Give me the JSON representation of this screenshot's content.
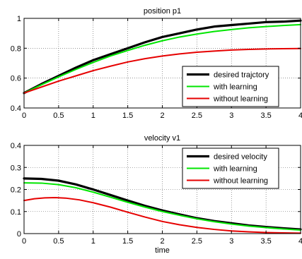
{
  "chart_data": [
    {
      "type": "line",
      "title": "position p1",
      "xlabel": "",
      "ylabel": "",
      "xlim": [
        0,
        4
      ],
      "ylim": [
        0.4,
        1
      ],
      "xticks": [
        0,
        0.5,
        1,
        1.5,
        2,
        2.5,
        3,
        3.5,
        4
      ],
      "xtick_labels": [
        "0",
        "0.5",
        "1",
        "1.5",
        "2",
        "2.5",
        "3",
        "3.5",
        "4"
      ],
      "yticks": [
        0.4,
        0.6,
        0.8,
        1
      ],
      "ytick_labels": [
        "0.4",
        "0.6",
        "0.8",
        "1"
      ],
      "grid": true,
      "legend_position": "bottom-right",
      "series": [
        {
          "name": "desired trajctory",
          "color": "#000000",
          "x": [
            0,
            0.25,
            0.5,
            0.75,
            1,
            1.25,
            1.5,
            1.75,
            2,
            2.25,
            2.5,
            2.75,
            3,
            3.25,
            3.5,
            3.75,
            4
          ],
          "y": [
            0.5,
            0.56,
            0.615,
            0.67,
            0.72,
            0.76,
            0.8,
            0.84,
            0.875,
            0.9,
            0.925,
            0.945,
            0.955,
            0.965,
            0.975,
            0.978,
            0.985
          ]
        },
        {
          "name": "with learning",
          "color": "#00e600",
          "x": [
            0,
            0.25,
            0.5,
            0.75,
            1,
            1.25,
            1.5,
            1.75,
            2,
            2.25,
            2.5,
            2.75,
            3,
            3.25,
            3.5,
            3.75,
            4
          ],
          "y": [
            0.5,
            0.555,
            0.608,
            0.658,
            0.705,
            0.748,
            0.785,
            0.82,
            0.85,
            0.875,
            0.895,
            0.912,
            0.925,
            0.937,
            0.945,
            0.952,
            0.958
          ]
        },
        {
          "name": "without learning",
          "color": "#e60000",
          "x": [
            0,
            0.25,
            0.5,
            0.75,
            1,
            1.25,
            1.5,
            1.75,
            2,
            2.25,
            2.5,
            2.75,
            3,
            3.25,
            3.5,
            3.75,
            4
          ],
          "y": [
            0.5,
            0.54,
            0.58,
            0.615,
            0.65,
            0.68,
            0.708,
            0.73,
            0.748,
            0.762,
            0.773,
            0.781,
            0.788,
            0.792,
            0.795,
            0.797,
            0.798
          ]
        }
      ]
    },
    {
      "type": "line",
      "title": "velocity v1",
      "xlabel": "time",
      "ylabel": "",
      "xlim": [
        0,
        4
      ],
      "ylim": [
        0,
        0.4
      ],
      "xticks": [
        0,
        0.5,
        1,
        1.5,
        2,
        2.5,
        3,
        3.5,
        4
      ],
      "xtick_labels": [
        "0",
        "0.5",
        "1",
        "1.5",
        "2",
        "2.5",
        "3",
        "3.5",
        "4"
      ],
      "yticks": [
        0,
        0.1,
        0.2,
        0.3,
        0.4
      ],
      "ytick_labels": [
        "0",
        "0.1",
        "0.2",
        "0.3",
        "0.4"
      ],
      "grid": true,
      "legend_position": "top-right",
      "series": [
        {
          "name": "desired velocity",
          "color": "#000000",
          "x": [
            0,
            0.25,
            0.5,
            0.75,
            1,
            1.25,
            1.5,
            1.75,
            2,
            2.25,
            2.5,
            2.75,
            3,
            3.25,
            3.5,
            3.75,
            4
          ],
          "y": [
            0.25,
            0.248,
            0.24,
            0.223,
            0.2,
            0.175,
            0.15,
            0.126,
            0.105,
            0.087,
            0.07,
            0.057,
            0.047,
            0.037,
            0.03,
            0.024,
            0.019
          ]
        },
        {
          "name": "with learning",
          "color": "#00e600",
          "x": [
            0,
            0.25,
            0.5,
            0.75,
            1,
            1.25,
            1.5,
            1.75,
            2,
            2.25,
            2.5,
            2.75,
            3,
            3.25,
            3.5,
            3.75,
            4
          ],
          "y": [
            0.23,
            0.229,
            0.222,
            0.208,
            0.188,
            0.165,
            0.142,
            0.12,
            0.1,
            0.083,
            0.067,
            0.054,
            0.043,
            0.034,
            0.027,
            0.021,
            0.016
          ]
        },
        {
          "name": "without learning",
          "color": "#e60000",
          "x": [
            0,
            0.15,
            0.3,
            0.45,
            0.6,
            0.8,
            1,
            1.25,
            1.5,
            1.75,
            2,
            2.25,
            2.5,
            2.75,
            3,
            3.25,
            3.5,
            3.75,
            4
          ],
          "y": [
            0.15,
            0.158,
            0.162,
            0.163,
            0.161,
            0.153,
            0.14,
            0.12,
            0.097,
            0.075,
            0.055,
            0.04,
            0.028,
            0.019,
            0.012,
            0.008,
            0.005,
            0.003,
            0.002
          ]
        }
      ]
    }
  ]
}
